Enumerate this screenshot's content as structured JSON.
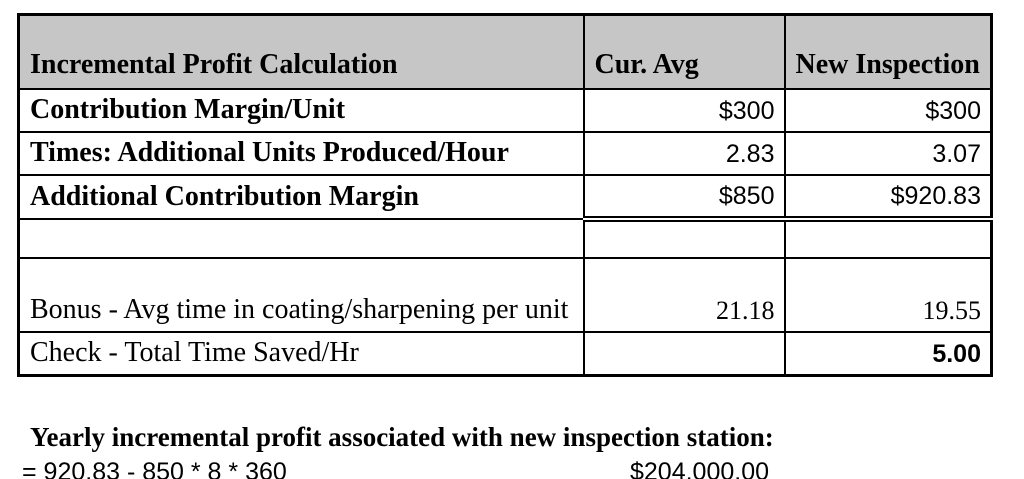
{
  "table": {
    "header": {
      "col1": "Incremental Profit Calculation",
      "col2": "Cur. Avg",
      "col3": "New Inspection"
    },
    "rows": [
      {
        "label": "Contribution Margin/Unit",
        "cur_avg": "$300",
        "new_inspection": "$300"
      },
      {
        "label": "Times: Additional Units Produced/Hour",
        "cur_avg": "2.83",
        "new_inspection": "3.07"
      },
      {
        "label": "Additional Contribution Margin",
        "cur_avg": "$850",
        "new_inspection": "$920.83"
      },
      {
        "label": "",
        "cur_avg": "",
        "new_inspection": ""
      },
      {
        "label": "Bonus - Avg time in coating/sharpening per unit",
        "cur_avg": "21.18",
        "new_inspection": "19.55"
      },
      {
        "label": "Check - Total Time Saved/Hr",
        "cur_avg": "",
        "new_inspection": "5.00"
      }
    ]
  },
  "summary": {
    "title": "Yearly incremental profit associated with new inspection station:",
    "formula": "= 920.83 - 850 * 8 * 360",
    "result": "$204,000.00"
  },
  "colors": {
    "header_bg": "#c6c6c6",
    "border": "#000000",
    "text": "#000000"
  }
}
